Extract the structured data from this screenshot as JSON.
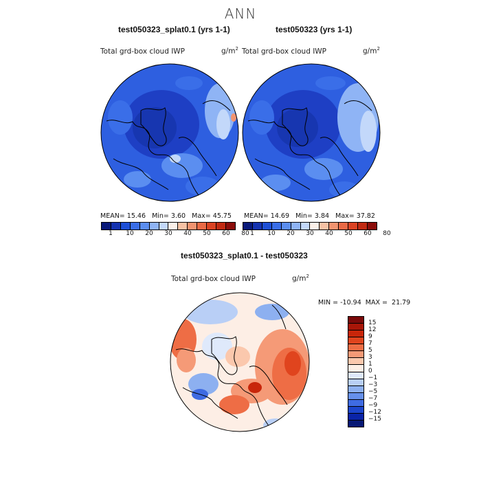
{
  "season": "ANN",
  "colors": {
    "abs_scale": [
      "#0a1a7a",
      "#1533b0",
      "#1e4fd6",
      "#3a6ee8",
      "#5b8ef0",
      "#8fb4f5",
      "#c3d8fa",
      "#fbf0e8",
      "#f7c2a4",
      "#f29470",
      "#ea6a45",
      "#db4323",
      "#c12a12",
      "#8b0d0a"
    ],
    "diff_scale": [
      "#7a0a0a",
      "#a81608",
      "#c8260a",
      "#e0441e",
      "#ee6d45",
      "#f59a77",
      "#fbc8ad",
      "#fdeee5",
      "#dfe9fb",
      "#b9cff6",
      "#8db0f0",
      "#6690ea",
      "#3f6be2",
      "#1c45cc",
      "#0a24a8",
      "#061875"
    ]
  },
  "panels": [
    {
      "title": "test050323_splat0.1 (yrs 1-1)",
      "variable": "Total grd-box cloud IWP",
      "units": "g/m",
      "units_exp": "2",
      "mean_label": "MEAN=",
      "mean": "15.46",
      "min_label": "Min=",
      "min": "3.60",
      "max_label": "Max=",
      "max": "45.75",
      "ticks": [
        "1",
        "10",
        "20",
        "30",
        "40",
        "50",
        "60",
        "80"
      ]
    },
    {
      "title": "test050323 (yrs 1-1)",
      "variable": "Total grd-box cloud IWP",
      "units": "g/m",
      "units_exp": "2",
      "mean_label": "MEAN=",
      "mean": "14.69",
      "min_label": "Min=",
      "min": "3.84",
      "max_label": "Max=",
      "max": "37.82",
      "ticks": [
        "1",
        "10",
        "20",
        "30",
        "40",
        "50",
        "60",
        "80"
      ]
    }
  ],
  "diff": {
    "title": "test050323_splat0.1 - test050323",
    "variable": "Total grd-box cloud IWP",
    "units": "g/m",
    "units_exp": "2",
    "min_label": "MIN =",
    "min": "-10.94",
    "max_label": "MAX =",
    "max": "21.79",
    "ticks": [
      "15",
      "12",
      "9",
      "7",
      "5",
      "3",
      "1",
      "0",
      "−1",
      "−3",
      "−5",
      "−7",
      "−9",
      "−12",
      "−15"
    ]
  }
}
